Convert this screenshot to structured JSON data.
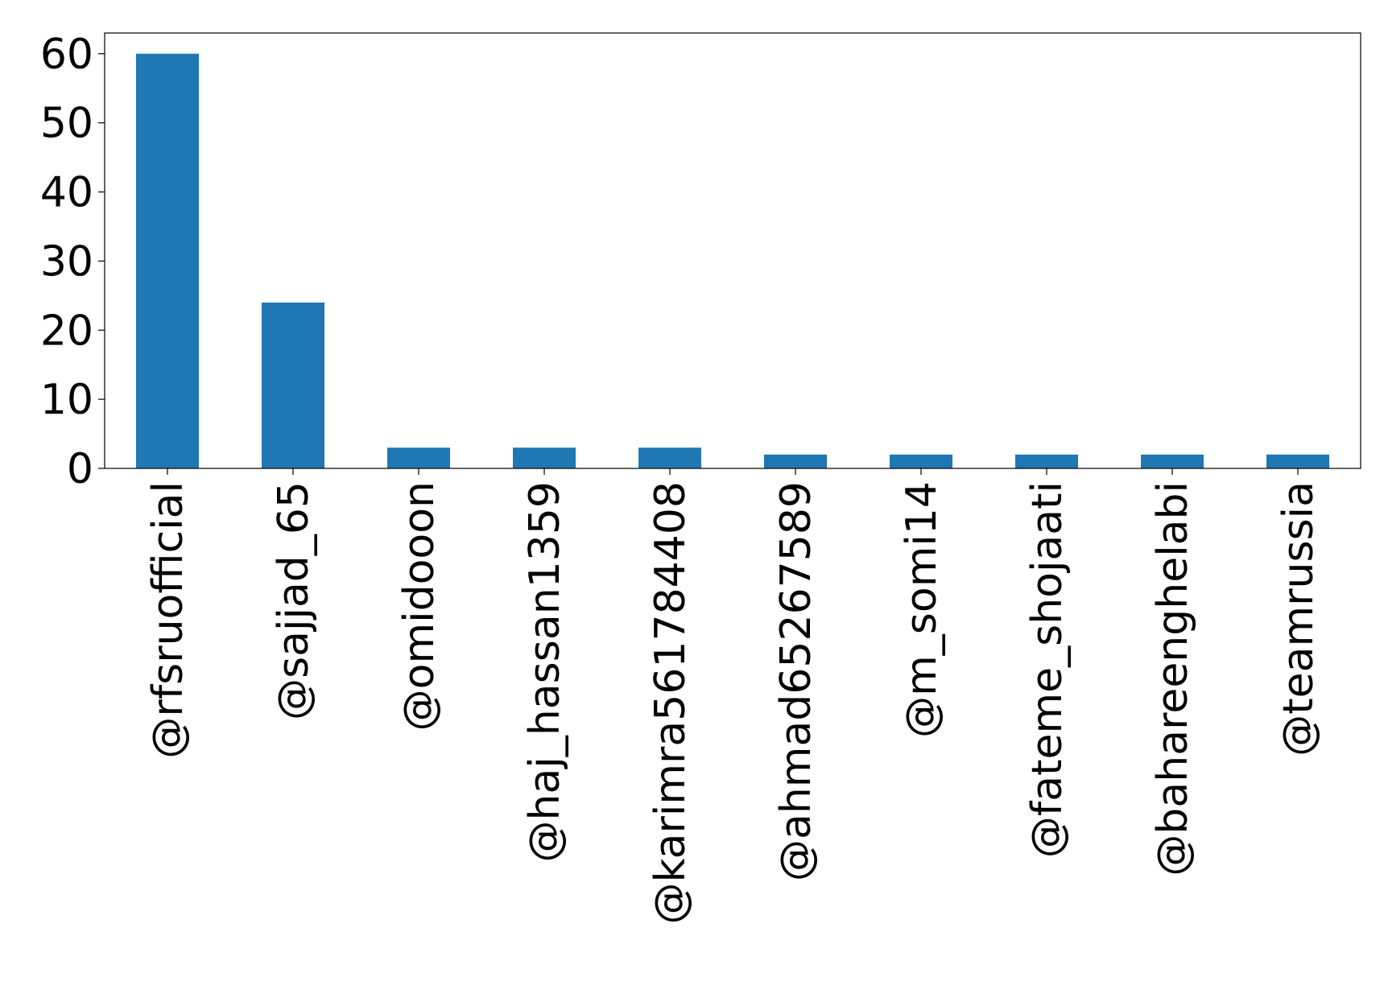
{
  "chart_data": {
    "type": "bar",
    "categories": [
      "@rfsruofficial",
      "@sajjad_65",
      "@omidooon",
      "@haj_hassan1359",
      "@karimra561784408",
      "@ahmad65267589",
      "@m_somi14",
      "@fateme_shojaati",
      "@bahareenghelabi",
      "@teamrussia"
    ],
    "values": [
      60,
      24,
      3,
      3,
      3,
      2,
      2,
      2,
      2,
      2
    ],
    "ylim": [
      0,
      63
    ],
    "yticks": [
      0,
      10,
      20,
      30,
      40,
      50,
      60
    ],
    "ytick_labels": [
      "0",
      "10",
      "20",
      "30",
      "40",
      "50",
      "60"
    ],
    "title": "",
    "xlabel": "",
    "ylabel": "",
    "grid": false,
    "bar_color": "#1f77b4"
  }
}
